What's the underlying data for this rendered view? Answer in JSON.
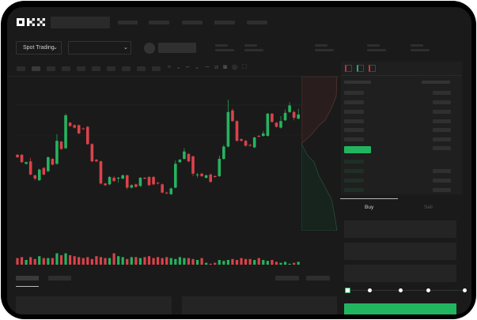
{
  "brand": {
    "logo": "OKX"
  },
  "toolbar": {
    "market_selector": "Spot Trading",
    "chevron": "chevron-down-icon"
  },
  "trade_panel": {
    "tabs": [
      {
        "label": "Buy",
        "active": true
      },
      {
        "label": "Sell",
        "active": false
      }
    ],
    "leverage_slider": 0
  },
  "colors": {
    "up": "#26b35f",
    "down": "#d9434a",
    "background": "#1a1a1a",
    "accent": "#22b560"
  },
  "chart_data": {
    "type": "candlestick",
    "ohlc": [
      [
        68,
        65,
        69,
        64
      ],
      [
        68,
        59,
        69,
        58
      ],
      [
        57,
        59,
        60,
        56
      ],
      [
        60,
        44,
        64,
        43
      ],
      [
        43,
        39,
        44,
        37
      ],
      [
        37,
        50,
        51,
        36
      ],
      [
        52,
        44,
        53,
        43
      ],
      [
        48,
        65,
        66,
        47
      ],
      [
        63,
        56,
        64,
        55
      ],
      [
        57,
        85,
        93,
        56
      ],
      [
        84,
        75,
        85,
        74
      ],
      [
        76,
        116,
        118,
        75
      ],
      [
        107,
        103,
        108,
        102
      ],
      [
        104,
        101,
        105,
        100
      ],
      [
        104,
        94,
        105,
        93
      ],
      [
        100,
        99,
        101,
        99
      ],
      [
        102,
        81,
        103,
        80
      ],
      [
        81,
        60,
        82,
        59
      ],
      [
        62,
        60,
        63,
        59
      ],
      [
        60,
        33,
        61,
        32
      ],
      [
        33,
        31,
        34,
        30
      ],
      [
        32,
        41,
        42,
        31
      ],
      [
        40,
        36,
        42,
        35
      ],
      [
        39,
        40,
        41,
        34
      ],
      [
        39,
        43,
        44,
        38
      ],
      [
        43,
        28,
        44,
        26
      ],
      [
        28,
        31,
        32,
        27
      ],
      [
        32,
        29,
        33,
        28
      ],
      [
        30,
        40,
        41,
        29
      ],
      [
        40,
        39,
        41,
        38
      ],
      [
        41,
        31,
        42,
        30
      ],
      [
        41,
        32,
        42,
        31
      ],
      [
        34,
        33,
        35,
        32
      ],
      [
        32,
        22,
        33,
        21
      ],
      [
        22,
        21,
        23,
        20
      ],
      [
        20,
        27,
        28,
        19
      ],
      [
        28,
        57,
        61,
        27
      ],
      [
        59,
        62,
        63,
        58
      ],
      [
        63,
        72,
        76,
        62
      ],
      [
        69,
        60,
        70,
        59
      ],
      [
        66,
        45,
        67,
        42
      ],
      [
        43,
        44,
        46,
        40
      ],
      [
        45,
        42,
        46,
        41
      ],
      [
        40,
        43,
        44,
        39
      ],
      [
        44,
        35,
        45,
        34
      ],
      [
        42,
        41,
        43,
        40
      ],
      [
        42,
        63,
        67,
        41
      ],
      [
        63,
        78,
        80,
        62
      ],
      [
        78,
        120,
        135,
        77
      ],
      [
        122,
        109,
        124,
        108
      ],
      [
        109,
        85,
        110,
        84
      ],
      [
        87,
        85,
        88,
        84
      ],
      [
        85,
        79,
        86,
        78
      ],
      [
        80,
        79,
        81,
        78
      ],
      [
        77,
        89,
        90,
        76
      ],
      [
        91,
        90,
        92,
        89
      ],
      [
        91,
        94,
        97,
        90
      ],
      [
        91,
        118,
        119,
        90
      ],
      [
        118,
        108,
        119,
        107
      ],
      [
        107,
        102,
        108,
        101
      ],
      [
        101,
        109,
        115,
        100
      ],
      [
        110,
        119,
        123,
        109
      ],
      [
        120,
        128,
        132,
        119
      ],
      [
        120,
        113,
        122,
        110
      ],
      [
        112,
        117,
        124,
        111
      ]
    ],
    "volume": [
      7,
      8,
      5,
      8,
      6,
      9,
      7,
      7,
      7,
      12,
      10,
      12,
      10,
      9,
      8,
      7,
      8,
      6,
      9,
      8,
      7,
      7,
      12,
      9,
      8,
      6,
      8,
      8,
      7,
      8,
      9,
      7,
      8,
      7,
      8,
      7,
      6,
      8,
      7,
      7,
      6,
      5,
      7,
      2,
      1,
      2,
      5,
      4,
      5,
      6,
      5,
      7,
      6,
      6,
      5,
      7,
      5,
      4,
      5,
      3,
      2,
      3,
      1,
      2,
      3
    ]
  }
}
